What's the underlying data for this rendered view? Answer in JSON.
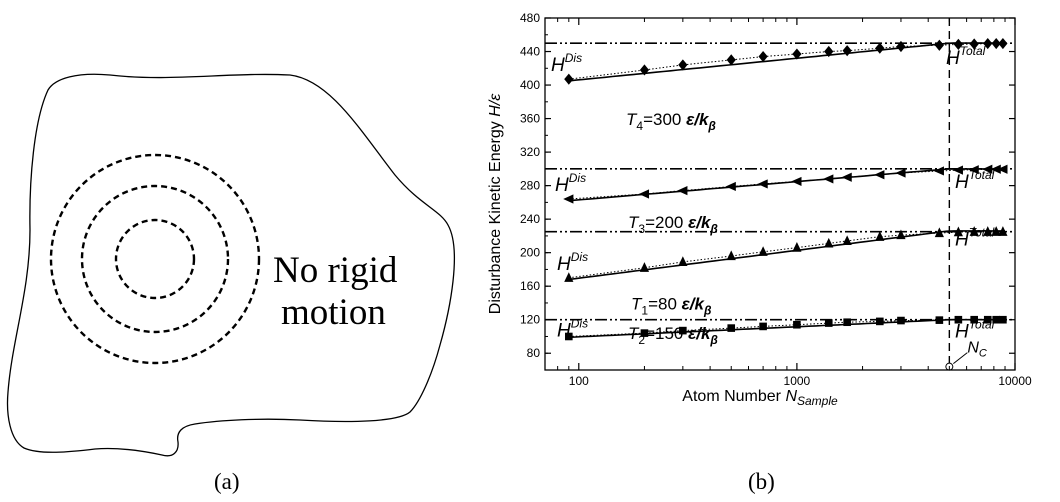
{
  "panel_a": {
    "text_line1": "No rigid",
    "text_line2": "motion",
    "caption": "(a)"
  },
  "panel_b": {
    "caption": "(b)"
  },
  "chart_data": {
    "type": "line",
    "xscale": "log",
    "xlim": [
      70,
      10000
    ],
    "ylim": [
      60,
      480
    ],
    "xticks": [
      100,
      1000,
      10000
    ],
    "xtick_labels": [
      "100",
      "1000",
      "10000"
    ],
    "yticks": [
      80,
      120,
      160,
      200,
      240,
      280,
      320,
      360,
      400,
      440,
      480
    ],
    "xlabel_main": "Atom Number ",
    "xlabel_var": "N",
    "xlabel_sub": "Sample",
    "ylabel_main": "Disturbance Kinetic Energy ",
    "ylabel_var": "H/ε",
    "vline": {
      "x": 5000,
      "label": "N",
      "label_sub": "C",
      "marker_y": 64
    },
    "series": [
      {
        "marker": "diamond",
        "total": 450,
        "temp_label": "T",
        "temp_sub": "4",
        "temp_value": "=300 ",
        "points": [
          [
            90,
            407
          ],
          [
            200,
            418
          ],
          [
            300,
            424
          ],
          [
            500,
            430
          ],
          [
            700,
            434
          ],
          [
            1000,
            437
          ],
          [
            1400,
            440
          ],
          [
            1700,
            441
          ],
          [
            2400,
            444
          ],
          [
            3000,
            446
          ],
          [
            4500,
            447.5
          ],
          [
            5500,
            448.5
          ],
          [
            6500,
            449
          ],
          [
            7500,
            449.5
          ],
          [
            8200,
            449.5
          ],
          [
            8800,
            449.5
          ]
        ],
        "fit_start": 405,
        "fit_end": 450
      },
      {
        "marker": "triangle-left",
        "total": 300,
        "temp_label": "T",
        "temp_sub": "3",
        "temp_value": "=200 ",
        "points": [
          [
            90,
            264
          ],
          [
            200,
            270
          ],
          [
            300,
            274
          ],
          [
            500,
            279
          ],
          [
            700,
            282
          ],
          [
            1000,
            285
          ],
          [
            1400,
            288
          ],
          [
            1700,
            290
          ],
          [
            2400,
            293
          ],
          [
            3000,
            295
          ],
          [
            4500,
            297.5
          ],
          [
            5500,
            298.5
          ],
          [
            6500,
            299
          ],
          [
            7500,
            299.5
          ],
          [
            8200,
            299.5
          ],
          [
            8800,
            299.5
          ]
        ],
        "fit_start": 262,
        "fit_end": 300
      },
      {
        "marker": "triangle-up",
        "total": 225,
        "temp_label": "T",
        "temp_sub": "2",
        "temp_value": "=150 ",
        "points": [
          [
            90,
            170
          ],
          [
            200,
            182
          ],
          [
            300,
            189
          ],
          [
            500,
            196
          ],
          [
            700,
            201
          ],
          [
            1000,
            206
          ],
          [
            1400,
            211
          ],
          [
            1700,
            214
          ],
          [
            2400,
            219
          ],
          [
            3000,
            221
          ],
          [
            4500,
            223.5
          ],
          [
            5500,
            224.5
          ],
          [
            6500,
            225
          ],
          [
            7500,
            225
          ],
          [
            8200,
            225
          ],
          [
            8800,
            225
          ]
        ],
        "fit_start": 168,
        "fit_end": 226
      },
      {
        "marker": "square",
        "total": 120,
        "temp_label": "T",
        "temp_sub": "1",
        "temp_value": "=80 ",
        "points": [
          [
            90,
            100
          ],
          [
            200,
            104
          ],
          [
            300,
            107
          ],
          [
            500,
            110
          ],
          [
            700,
            112
          ],
          [
            1000,
            114
          ],
          [
            1400,
            116
          ],
          [
            1700,
            117
          ],
          [
            2400,
            118
          ],
          [
            3000,
            119
          ],
          [
            4500,
            119.5
          ],
          [
            5500,
            120
          ],
          [
            6500,
            120
          ],
          [
            7500,
            120
          ],
          [
            8200,
            120
          ],
          [
            8800,
            120
          ]
        ],
        "fit_start": 99,
        "fit_end": 120
      }
    ],
    "unit_text": "ε/k",
    "unit_sub": "β",
    "h_dis_base": "H",
    "h_dis_sup": "Dis",
    "h_total_base": "H",
    "h_total_sup": "Total"
  }
}
